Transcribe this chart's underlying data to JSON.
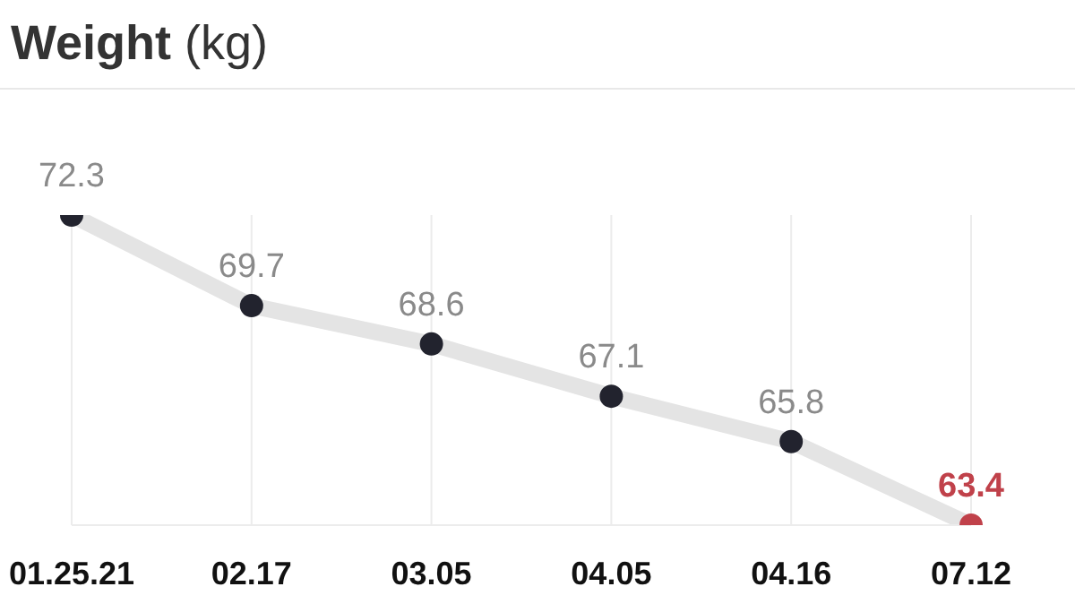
{
  "chart_data": {
    "type": "line",
    "title": "Weight (kg)",
    "categories": [
      "01.25.21",
      "02.17",
      "03.05",
      "04.05",
      "04.16",
      "07.12"
    ],
    "series": [
      {
        "color": "#e4e4e4",
        "values": [
          72.3,
          69.7,
          68.6,
          67.1,
          65.8,
          63.4
        ],
        "colors": [
          "#22232e",
          "#22232e",
          "#22232e",
          "#22232e",
          "#22232e",
          "#c0414a"
        ]
      }
    ],
    "data_labels": true,
    "grid": "x",
    "marker": "circle",
    "line_style": "solid",
    "legend": false
  }
}
